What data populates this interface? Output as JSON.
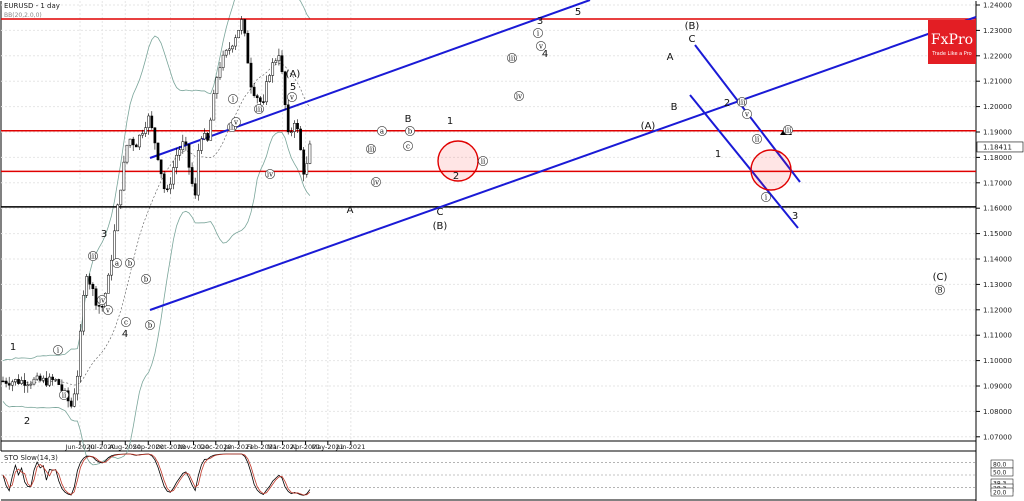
{
  "header": {
    "title": "EURUSD - 1 day",
    "indicator": "BB(20,2.0,0)"
  },
  "logo": {
    "brand": "FxPro",
    "tagline": "Trade Like a Pro",
    "color": "#e31e24"
  },
  "stochastic": {
    "title": "STO Slow(14,3)",
    "tags": [
      "80.0",
      "50.0",
      "38.3",
      "28.3",
      "20.0"
    ]
  },
  "chart_data": {
    "type": "candlestick",
    "instrument": "EURUSD",
    "timeframe": "1 day",
    "y_ticks": [
      "1.24000",
      "1.23000",
      "1.22000",
      "1.21000",
      "1.20000",
      "1.19000",
      "1.18000",
      "1.17000",
      "1.16000",
      "1.15000",
      "1.14000",
      "1.13000",
      "1.12000",
      "1.11000",
      "1.10000",
      "1.09000",
      "1.08000",
      "1.07000"
    ],
    "x_ticks": [
      "Jun-2020",
      "Jul-2020",
      "Aug-2020",
      "Sep-2020",
      "Oct-2020",
      "Nov-2020",
      "Dec-2020",
      "Jan-2021",
      "Feb-2021",
      "Mar-2021",
      "Apr-2021",
      "May-2021",
      "Jun-2021"
    ],
    "last_price": "1.18411",
    "ylim": [
      1.065,
      1.241
    ],
    "horizontal_levels": [
      {
        "value": 1.2345,
        "color": "#e00000"
      },
      {
        "value": 1.1905,
        "color": "#e00000"
      },
      {
        "value": 1.1745,
        "color": "#e00000"
      },
      {
        "value": 1.1605,
        "color": "#000000"
      }
    ],
    "key_closes": [
      {
        "date": "2020-05-25",
        "close": 1.09
      },
      {
        "date": "2020-06-10",
        "close": 1.137
      },
      {
        "date": "2020-07-01",
        "close": 1.123
      },
      {
        "date": "2020-08-01",
        "close": 1.188
      },
      {
        "date": "2020-09-01",
        "close": 1.197
      },
      {
        "date": "2020-09-25",
        "close": 1.163
      },
      {
        "date": "2020-11-01",
        "close": 1.162
      },
      {
        "date": "2020-11-09",
        "close": 1.19
      },
      {
        "date": "2021-01-06",
        "close": 1.234
      },
      {
        "date": "2021-02-05",
        "close": 1.196
      },
      {
        "date": "2021-02-25",
        "close": 1.223
      },
      {
        "date": "2021-03-31",
        "close": 1.171
      },
      {
        "date": "2021-04-07",
        "close": 1.1841
      }
    ],
    "wave_labels": [
      "1",
      "2",
      "3",
      "4",
      "5",
      "(A)",
      "(B)",
      "(C)",
      "A",
      "B",
      "C",
      "(B)",
      "B",
      "i",
      "ii",
      "iii",
      "iv",
      "v",
      "a",
      "b",
      "c"
    ]
  }
}
